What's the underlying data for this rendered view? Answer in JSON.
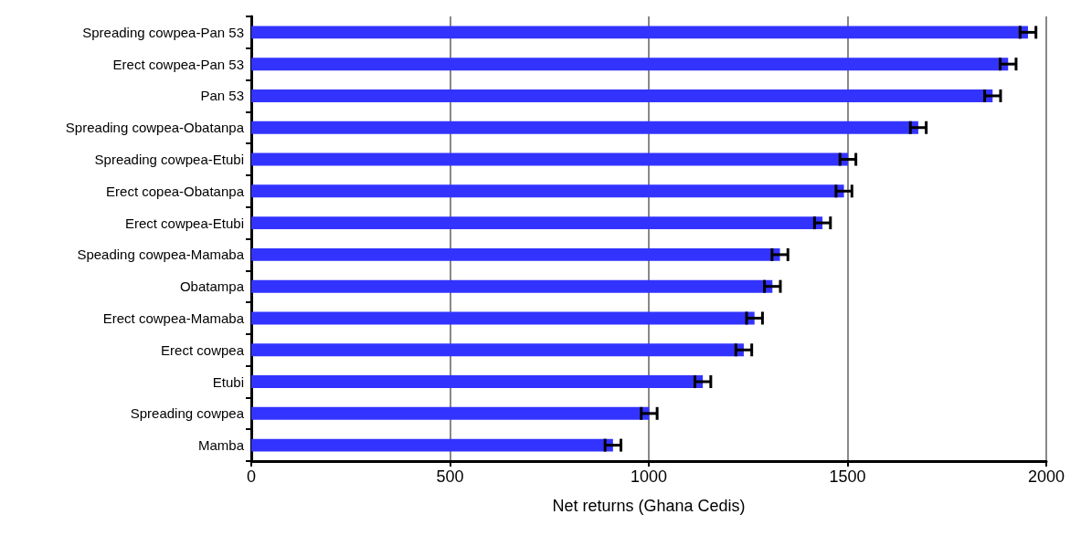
{
  "chart_data": {
    "type": "bar",
    "orientation": "horizontal",
    "xlabel": "Net returns (Ghana Cedis)",
    "categories": [
      "Spreading cowpea-Pan 53",
      "Erect cowpea-Pan 53",
      "Pan 53",
      "Spreading cowpea-Obatanpa",
      "Spreading cowpea-Etubi",
      "Erect copea-Obatanpa",
      "Erect cowpea-Etubi",
      "Speading cowpea-Mamaba",
      "Obatampa",
      "Erect cowpea-Mamaba",
      "Erect cowpea",
      "Etubi",
      "Spreading cowpea",
      "Mamba"
    ],
    "values": [
      1954,
      1904,
      1865,
      1678,
      1501,
      1491,
      1437,
      1330,
      1311,
      1266,
      1239,
      1136,
      1001,
      910
    ],
    "errors": [
      20,
      20,
      20,
      20,
      20,
      20,
      20,
      20,
      20,
      20,
      20,
      20,
      20,
      20
    ],
    "color": "#3333ff",
    "xlim": [
      0,
      2000
    ],
    "xticks": [
      0,
      500,
      1000,
      1500,
      2000
    ],
    "grid": "x"
  }
}
